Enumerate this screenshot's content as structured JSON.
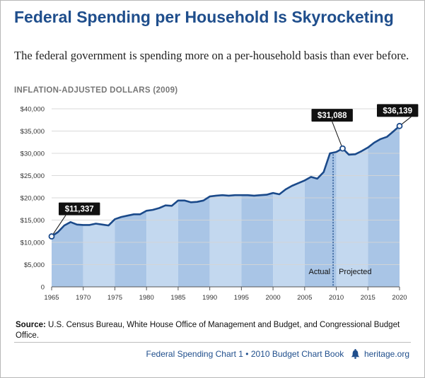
{
  "header": {
    "title": "Federal Spending per Household Is Skyrocketing",
    "subtitle": "The federal government is spending more on a per-household basis than ever before.",
    "unit_label": "INFLATION-ADJUSTED DOLLARS (2009)"
  },
  "chart_data": {
    "type": "area",
    "title": "Federal Spending per Household Is Skyrocketing",
    "ylabel": "INFLATION-ADJUSTED DOLLARS (2009)",
    "xlabel": "",
    "xlim": [
      1965,
      2020
    ],
    "ylim": [
      0,
      40000
    ],
    "x_ticks": [
      1965,
      1970,
      1975,
      1980,
      1985,
      1990,
      1995,
      2000,
      2005,
      2010,
      2015,
      2020
    ],
    "y_ticks": [
      {
        "value": 0,
        "label": "0"
      },
      {
        "value": 5000,
        "label": "$5,000"
      },
      {
        "value": 10000,
        "label": "$10,000"
      },
      {
        "value": 15000,
        "label": "$15,000"
      },
      {
        "value": 20000,
        "label": "$20,000"
      },
      {
        "value": 25000,
        "label": "$25,000"
      },
      {
        "value": 30000,
        "label": "$30,000"
      },
      {
        "value": 35000,
        "label": "$35,000"
      },
      {
        "value": 40000,
        "label": "$40,000"
      }
    ],
    "grid": true,
    "divider_year": 2009.5,
    "phase_labels": {
      "left": "Actual",
      "right": "Projected"
    },
    "colors": {
      "line": "#1b4a8a",
      "band_dark": "#a9c5e6",
      "band_light": "#c3d8ef",
      "grid": "#d5d5d5",
      "callout_bg": "#111111"
    },
    "series": [
      {
        "values": [
          {
            "x": 1965,
            "y": 11337
          },
          {
            "x": 1966,
            "y": 12300
          },
          {
            "x": 1967,
            "y": 13800
          },
          {
            "x": 1968,
            "y": 14550
          },
          {
            "x": 1969,
            "y": 14000
          },
          {
            "x": 1970,
            "y": 13900
          },
          {
            "x": 1971,
            "y": 13900
          },
          {
            "x": 1972,
            "y": 14200
          },
          {
            "x": 1973,
            "y": 14000
          },
          {
            "x": 1974,
            "y": 13800
          },
          {
            "x": 1975,
            "y": 15200
          },
          {
            "x": 1976,
            "y": 15700
          },
          {
            "x": 1977,
            "y": 16000
          },
          {
            "x": 1978,
            "y": 16300
          },
          {
            "x": 1979,
            "y": 16300
          },
          {
            "x": 1980,
            "y": 17100
          },
          {
            "x": 1981,
            "y": 17300
          },
          {
            "x": 1982,
            "y": 17700
          },
          {
            "x": 1983,
            "y": 18300
          },
          {
            "x": 1984,
            "y": 18200
          },
          {
            "x": 1985,
            "y": 19400
          },
          {
            "x": 1986,
            "y": 19400
          },
          {
            "x": 1987,
            "y": 19000
          },
          {
            "x": 1988,
            "y": 19100
          },
          {
            "x": 1989,
            "y": 19400
          },
          {
            "x": 1990,
            "y": 20300
          },
          {
            "x": 1991,
            "y": 20500
          },
          {
            "x": 1992,
            "y": 20600
          },
          {
            "x": 1993,
            "y": 20500
          },
          {
            "x": 1994,
            "y": 20600
          },
          {
            "x": 1995,
            "y": 20600
          },
          {
            "x": 1996,
            "y": 20600
          },
          {
            "x": 1997,
            "y": 20500
          },
          {
            "x": 1998,
            "y": 20600
          },
          {
            "x": 1999,
            "y": 20700
          },
          {
            "x": 2000,
            "y": 21100
          },
          {
            "x": 2001,
            "y": 20800
          },
          {
            "x": 2002,
            "y": 21900
          },
          {
            "x": 2003,
            "y": 22700
          },
          {
            "x": 2004,
            "y": 23300
          },
          {
            "x": 2005,
            "y": 23900
          },
          {
            "x": 2006,
            "y": 24700
          },
          {
            "x": 2007,
            "y": 24300
          },
          {
            "x": 2008,
            "y": 25800
          },
          {
            "x": 2009,
            "y": 30000
          },
          {
            "x": 2010,
            "y": 30300
          },
          {
            "x": 2011,
            "y": 31088
          },
          {
            "x": 2012,
            "y": 29700
          },
          {
            "x": 2013,
            "y": 29800
          },
          {
            "x": 2014,
            "y": 30500
          },
          {
            "x": 2015,
            "y": 31300
          },
          {
            "x": 2016,
            "y": 32400
          },
          {
            "x": 2017,
            "y": 33200
          },
          {
            "x": 2018,
            "y": 33700
          },
          {
            "x": 2019,
            "y": 34900
          },
          {
            "x": 2020,
            "y": 36139
          }
        ]
      }
    ],
    "annotations": [
      {
        "label": "$11,337",
        "x": 1965,
        "y": 11337
      },
      {
        "label": "$31,088",
        "x": 2011,
        "y": 31088
      },
      {
        "label": "$36,139",
        "x": 2020,
        "y": 36139
      }
    ]
  },
  "source": {
    "label": "Source:",
    "text": " U.S. Census Bureau, White House Office of Management and Budget, and Congressional Budget Office."
  },
  "footer": {
    "chart_ref": "Federal Spending Chart 1 • 2010 Budget Chart Book",
    "site": "heritage.org",
    "logo_icon": "liberty-bell-icon"
  }
}
